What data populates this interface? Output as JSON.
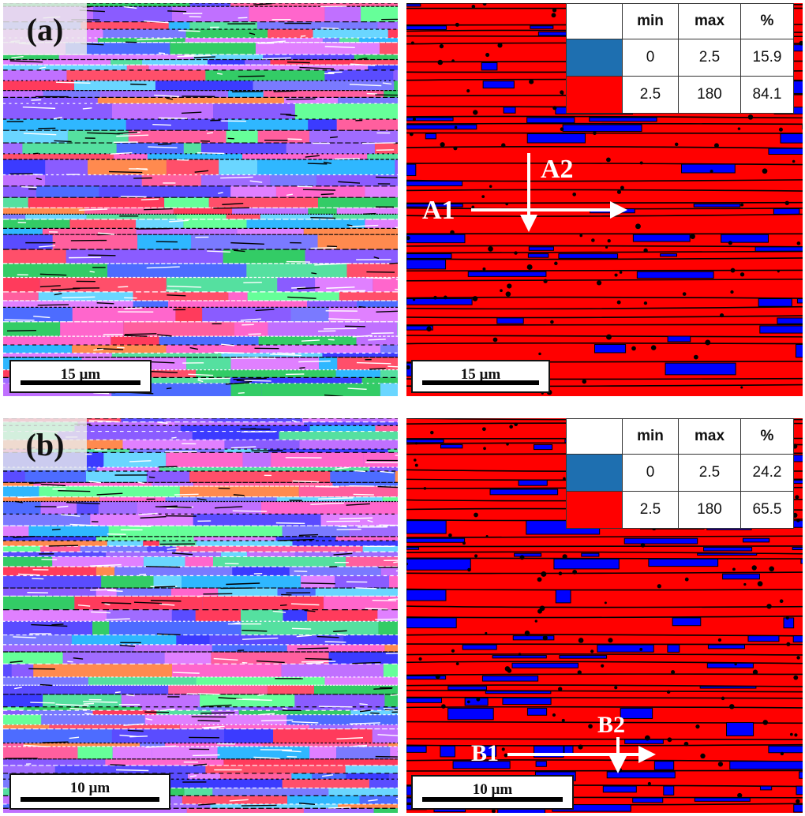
{
  "panels": {
    "a": {
      "label": "(a)",
      "left_scalebar": "15 µm",
      "right_scalebar": "15 µm",
      "table": {
        "headers": [
          "",
          "min",
          "max",
          "%"
        ],
        "rows": [
          {
            "color": "#1e6fb0",
            "min": "0",
            "max": "2.5",
            "pct": "15.9"
          },
          {
            "color": "#ff0000",
            "min": "2.5",
            "max": "180",
            "pct": "84.1"
          }
        ]
      },
      "annotations": {
        "h": "A1",
        "v": "A2"
      }
    },
    "b": {
      "label": "(b)",
      "left_scalebar": "10 µm",
      "right_scalebar": "10 µm",
      "table": {
        "headers": [
          "",
          "min",
          "max",
          "%"
        ],
        "rows": [
          {
            "color": "#1e6fb0",
            "min": "0",
            "max": "2.5",
            "pct": "24.2"
          },
          {
            "color": "#ff0000",
            "min": "2.5",
            "max": "180",
            "pct": "65.5"
          }
        ]
      },
      "annotations": {
        "h": "B1",
        "v": "B2"
      }
    }
  },
  "colors": {
    "kam_low": "#0000ff",
    "kam_high": "#ff0000",
    "legend_low": "#1e6fb0"
  }
}
